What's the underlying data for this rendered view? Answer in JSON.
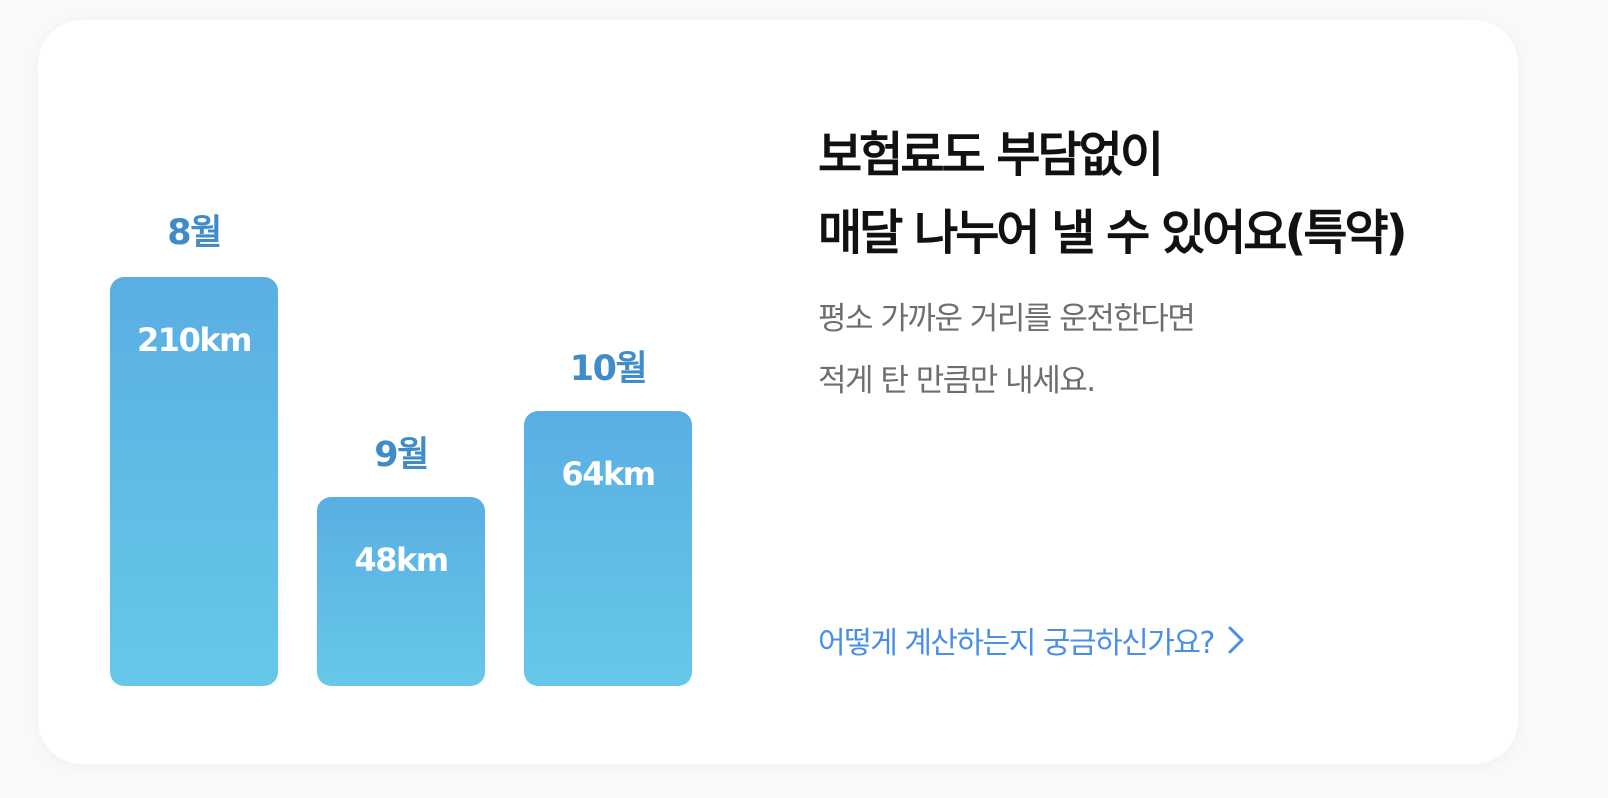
{
  "headline": {
    "line1": "보험료도 부담없이",
    "line2": "매달 나누어 낼 수 있어요(특약)"
  },
  "description": {
    "line1": "평소 가까운 거리를 운전한다면",
    "line2": "적게 탄 만큼만 내세요."
  },
  "link": {
    "label": "어떻게 계산하는지 궁금하신가요?",
    "icon": "chevron-right-icon"
  },
  "chart_data": {
    "type": "bar",
    "categories": [
      "8월",
      "9월",
      "10월"
    ],
    "values": [
      210,
      48,
      64
    ],
    "value_labels": [
      "210km",
      "48km",
      "64km"
    ],
    "unit": "km"
  },
  "colors": {
    "bar_top": "#5aaee3",
    "bar_bottom": "#66c8e8",
    "month_label": "#3f8cc9",
    "link": "#4a8fe6"
  }
}
